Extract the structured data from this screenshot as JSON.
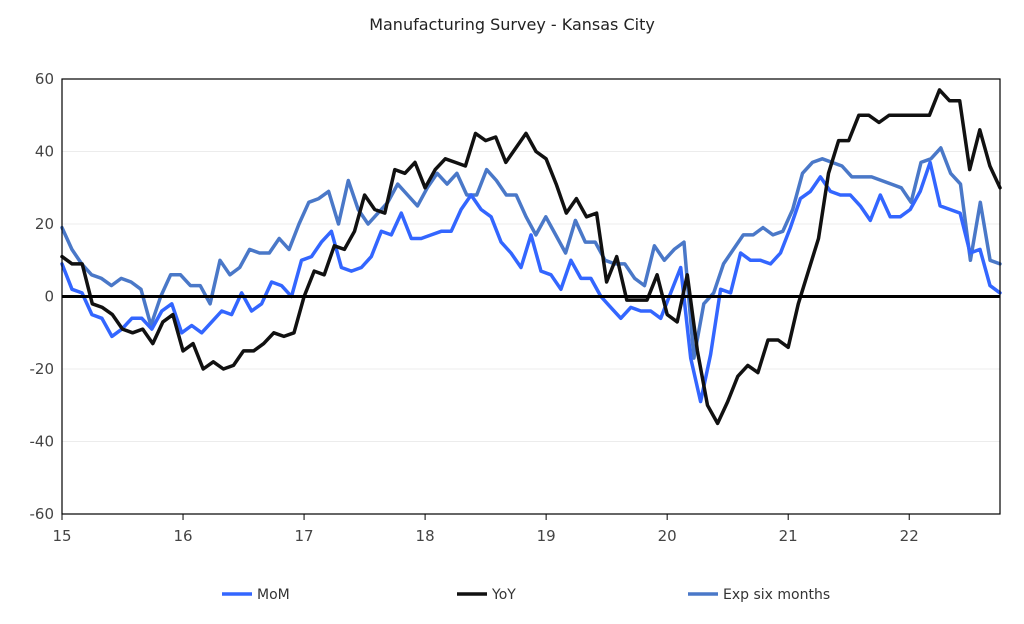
{
  "chart_data": {
    "type": "line",
    "title": "Manufacturing Survey - Kansas City",
    "xlabel": "",
    "ylabel": "",
    "xlim": [
      15,
      22.75
    ],
    "ylim": [
      -60,
      60
    ],
    "x_ticks": [
      "15",
      "16",
      "17",
      "18",
      "19",
      "20",
      "21",
      "22"
    ],
    "y_ticks": [
      "60",
      "40",
      "20",
      "0",
      "-20",
      "-40",
      "-60"
    ],
    "grid": "horizontal",
    "legend": "bottom",
    "series": [
      {
        "name": "MoM",
        "color": "#3366ff",
        "values": [
          9,
          2,
          1,
          -5,
          -6,
          -11,
          -9,
          -6,
          -6,
          -9,
          -4,
          -2,
          -10,
          -8,
          -10,
          -7,
          -4,
          -5,
          1,
          -4,
          -2,
          4,
          3,
          0,
          10,
          11,
          15,
          18,
          8,
          7,
          8,
          11,
          18,
          17,
          23,
          16,
          16,
          17,
          18,
          18,
          24,
          28,
          24,
          22,
          15,
          12,
          8,
          17,
          7,
          6,
          2,
          10,
          5,
          5,
          0,
          -3,
          -6,
          -3,
          -4,
          -4,
          -6,
          1,
          8,
          -17,
          -29,
          -16,
          2,
          1,
          12,
          10,
          10,
          9,
          12,
          19,
          27,
          29,
          33,
          29,
          28,
          28,
          25,
          21,
          28,
          22,
          22,
          24,
          29,
          37,
          25,
          24,
          23,
          12,
          13,
          3,
          1
        ]
      },
      {
        "name": "YoY",
        "color": "#111111",
        "values": [
          11,
          9,
          9,
          -2,
          -3,
          -5,
          -9,
          -10,
          -9,
          -13,
          -7,
          -5,
          -15,
          -13,
          -20,
          -18,
          -20,
          -19,
          -15,
          -15,
          -13,
          -10,
          -11,
          -10,
          0,
          7,
          6,
          14,
          13,
          18,
          28,
          24,
          23,
          35,
          34,
          37,
          30,
          35,
          38,
          37,
          36,
          45,
          43,
          44,
          37,
          41,
          45,
          40,
          38,
          31,
          23,
          27,
          22,
          23,
          4,
          11,
          -1,
          -1,
          -1,
          6,
          -5,
          -7,
          6,
          -15,
          -30,
          -35,
          -29,
          -22,
          -19,
          -21,
          -12,
          -12,
          -14,
          -2,
          7,
          16,
          34,
          43,
          43,
          50,
          50,
          48,
          50,
          50,
          50,
          50,
          50,
          57,
          54,
          54,
          35,
          46,
          36,
          30
        ]
      },
      {
        "name": "Exp six months",
        "color": "#4a78c8",
        "values": [
          19,
          13,
          9,
          6,
          5,
          3,
          5,
          4,
          2,
          -8,
          0,
          6,
          6,
          3,
          3,
          -2,
          10,
          6,
          8,
          13,
          12,
          12,
          16,
          13,
          20,
          26,
          27,
          29,
          20,
          32,
          24,
          20,
          23,
          26,
          31,
          28,
          25,
          30,
          34,
          31,
          34,
          28,
          28,
          35,
          32,
          28,
          28,
          22,
          17,
          22,
          17,
          12,
          21,
          15,
          15,
          10,
          9,
          9,
          5,
          3,
          14,
          10,
          13,
          15,
          -17,
          -2,
          1,
          9,
          13,
          17,
          17,
          19,
          17,
          18,
          24,
          34,
          37,
          38,
          37,
          36,
          33,
          33,
          33,
          32,
          31,
          30,
          26,
          37,
          38,
          41,
          34,
          31,
          10,
          26,
          10,
          9
        ]
      }
    ]
  }
}
